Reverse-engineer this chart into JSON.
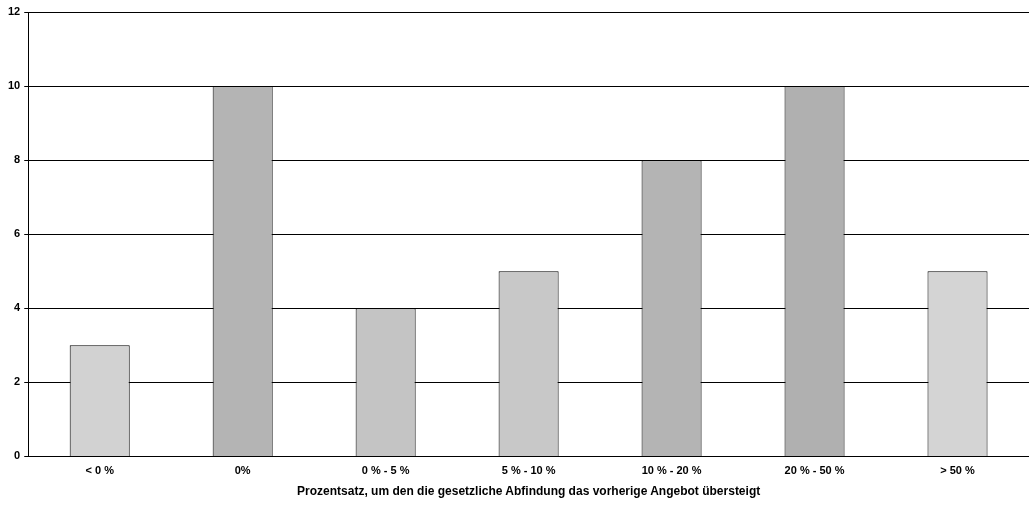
{
  "chart_data": {
    "type": "bar",
    "xlabel": "Prozentsatz, um den die gesetzliche Abfindung das vorherige Angebot übersteigt",
    "categories": [
      "< 0 %",
      "0%",
      "0 % - 5 %",
      "5 % - 10 %",
      "10 % - 20 %",
      "20 % - 50 %",
      "> 50 %"
    ],
    "values": [
      3,
      10,
      4,
      5,
      8,
      10,
      5
    ],
    "colors": [
      "#d2d2d2",
      "#b4b4b4",
      "#c4c4c4",
      "#c8c8c8",
      "#b4b4b4",
      "#b0b0b0",
      "#d4d4d4"
    ],
    "ylim": [
      0,
      12
    ],
    "yticks": [
      0,
      2,
      4,
      6,
      8,
      10,
      12
    ],
    "grid": "y",
    "legend": false
  }
}
